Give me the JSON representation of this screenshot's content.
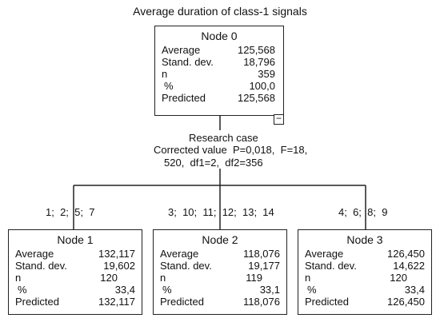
{
  "title": "Average duration of class-1 signals",
  "root": {
    "name": "Node 0",
    "rows": [
      {
        "label": "Average",
        "value": "125,568"
      },
      {
        "label": "Stand. dev.",
        "value": "18,796"
      },
      {
        "label": "n",
        "value": "359"
      },
      {
        "label": "%",
        "value": "100,0"
      },
      {
        "label": "Predicted",
        "value": "125,568"
      }
    ],
    "collapse_glyph": "−"
  },
  "split": {
    "line1": "Research case",
    "line2": "Corrected value  P=0,018,  F=18,",
    "line3": "520,  df1=2,  df2=356"
  },
  "branches": [
    {
      "label": "1;  2;  5;  7"
    },
    {
      "label": "3;  10;  11;  12;  13;  14"
    },
    {
      "label": "4;  6;  8;  9"
    }
  ],
  "children": [
    {
      "name": "Node 1",
      "rows": [
        {
          "label": "Average",
          "value": "132,117"
        },
        {
          "label": "Stand. dev.",
          "value": "19,602"
        },
        {
          "label": "n",
          "value": "120"
        },
        {
          "label": "%",
          "value": "33,4"
        },
        {
          "label": "Predicted",
          "value": "132,117"
        }
      ]
    },
    {
      "name": "Node 2",
      "rows": [
        {
          "label": "Average",
          "value": "118,076"
        },
        {
          "label": "Stand. dev.",
          "value": "19,177"
        },
        {
          "label": "n",
          "value": "119"
        },
        {
          "label": "%",
          "value": "33,1"
        },
        {
          "label": "Predicted",
          "value": "118,076"
        }
      ]
    },
    {
      "name": "Node 3",
      "rows": [
        {
          "label": "Average",
          "value": "126,450"
        },
        {
          "label": "Stand. dev.",
          "value": "14,622"
        },
        {
          "label": "n",
          "value": "120"
        },
        {
          "label": "%",
          "value": "33,4"
        },
        {
          "label": "Predicted",
          "value": "126,450"
        }
      ]
    }
  ]
}
